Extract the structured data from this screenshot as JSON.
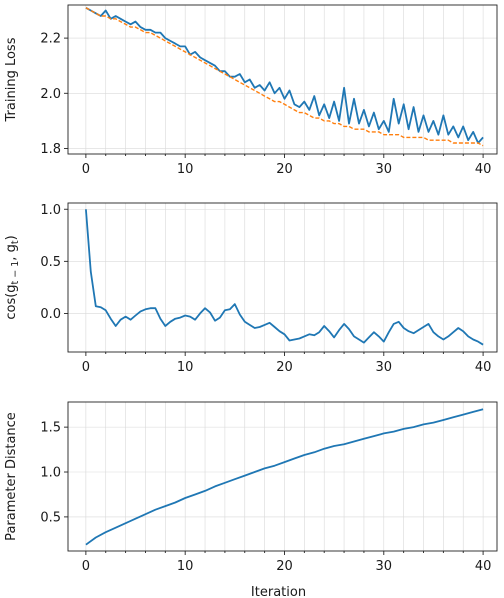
{
  "chart_data": [
    {
      "type": "line",
      "title": "",
      "xlabel": "",
      "ylabel": "Training Loss",
      "xlim": [
        -1.8,
        41.4
      ],
      "ylim": [
        1.78,
        2.32
      ],
      "xticks": [
        0,
        10,
        20,
        30,
        40
      ],
      "yticks": [
        1.8,
        2.0,
        2.2
      ],
      "ytick_labels": [
        "1.8",
        "2.0",
        "2.2"
      ],
      "grid": true,
      "x": [
        0,
        0.5,
        1,
        1.5,
        2,
        2.5,
        3,
        3.5,
        4,
        4.5,
        5,
        5.5,
        6,
        6.5,
        7,
        7.5,
        8,
        8.5,
        9,
        9.5,
        10,
        10.5,
        11,
        11.5,
        12,
        12.5,
        13,
        13.5,
        14,
        14.5,
        15,
        15.5,
        16,
        16.5,
        17,
        17.5,
        18,
        18.5,
        19,
        19.5,
        20,
        20.5,
        21,
        21.5,
        22,
        22.5,
        23,
        23.5,
        24,
        24.5,
        25,
        25.5,
        26,
        26.5,
        27,
        27.5,
        28,
        28.5,
        29,
        29.5,
        30,
        30.5,
        31,
        31.5,
        32,
        32.5,
        33,
        33.5,
        34,
        34.5,
        35,
        35.5,
        36,
        36.5,
        37,
        37.5,
        38,
        38.5,
        39,
        39.5,
        40
      ],
      "series": [
        {
          "color": "#1f77b4",
          "dash": "solid",
          "values": [
            2.31,
            2.3,
            2.29,
            2.28,
            2.3,
            2.27,
            2.28,
            2.27,
            2.26,
            2.25,
            2.26,
            2.24,
            2.23,
            2.23,
            2.22,
            2.22,
            2.2,
            2.19,
            2.18,
            2.17,
            2.17,
            2.14,
            2.15,
            2.13,
            2.12,
            2.11,
            2.1,
            2.08,
            2.08,
            2.06,
            2.06,
            2.07,
            2.04,
            2.05,
            2.02,
            2.03,
            2.01,
            2.04,
            2.0,
            2.02,
            1.98,
            2.01,
            1.96,
            1.95,
            1.97,
            1.94,
            1.99,
            1.92,
            1.96,
            1.91,
            1.97,
            1.9,
            2.02,
            1.89,
            1.98,
            1.89,
            1.94,
            1.88,
            1.93,
            1.87,
            1.9,
            1.86,
            1.98,
            1.89,
            1.96,
            1.87,
            1.95,
            1.86,
            1.92,
            1.86,
            1.9,
            1.85,
            1.92,
            1.85,
            1.88,
            1.84,
            1.88,
            1.83,
            1.86,
            1.82,
            1.84
          ]
        },
        {
          "color": "#ff7f0e",
          "dash": "dashed",
          "values": [
            2.31,
            2.3,
            2.29,
            2.28,
            2.28,
            2.27,
            2.27,
            2.26,
            2.25,
            2.24,
            2.24,
            2.23,
            2.22,
            2.22,
            2.21,
            2.2,
            2.19,
            2.18,
            2.17,
            2.16,
            2.15,
            2.14,
            2.13,
            2.12,
            2.11,
            2.1,
            2.09,
            2.08,
            2.07,
            2.06,
            2.05,
            2.04,
            2.03,
            2.02,
            2.01,
            2.0,
            1.99,
            1.98,
            1.97,
            1.97,
            1.96,
            1.95,
            1.94,
            1.93,
            1.93,
            1.92,
            1.91,
            1.91,
            1.9,
            1.9,
            1.89,
            1.89,
            1.88,
            1.88,
            1.87,
            1.87,
            1.87,
            1.86,
            1.86,
            1.86,
            1.85,
            1.85,
            1.85,
            1.85,
            1.84,
            1.84,
            1.84,
            1.84,
            1.84,
            1.83,
            1.83,
            1.83,
            1.83,
            1.83,
            1.82,
            1.82,
            1.82,
            1.82,
            1.82,
            1.82,
            1.81
          ]
        }
      ]
    },
    {
      "type": "line",
      "title": "",
      "xlabel": "",
      "ylabel": "cos(g",
      "ylabel_sub1": "t − 1",
      "ylabel_mid": ", g",
      "ylabel_sub2": "t",
      "ylabel_end": ")",
      "xlim": [
        -1.8,
        41.4
      ],
      "ylim": [
        -0.37,
        1.06
      ],
      "xticks": [
        0,
        10,
        20,
        30,
        40
      ],
      "yticks": [
        0.0,
        0.5,
        1.0
      ],
      "ytick_labels": [
        "0.0",
        "0.5",
        "1.0"
      ],
      "grid": true,
      "x": [
        0,
        0.5,
        1,
        1.5,
        2,
        2.5,
        3,
        3.5,
        4,
        4.5,
        5,
        5.5,
        6,
        6.5,
        7,
        7.5,
        8,
        8.5,
        9,
        9.5,
        10,
        10.5,
        11,
        11.5,
        12,
        12.5,
        13,
        13.5,
        14,
        14.5,
        15,
        15.5,
        16,
        16.5,
        17,
        17.5,
        18,
        18.5,
        19,
        19.5,
        20,
        20.5,
        21,
        21.5,
        22,
        22.5,
        23,
        23.5,
        24,
        24.5,
        25,
        25.5,
        26,
        26.5,
        27,
        27.5,
        28,
        28.5,
        29,
        29.5,
        30,
        30.5,
        31,
        31.5,
        32,
        32.5,
        33,
        33.5,
        34,
        34.5,
        35,
        35.5,
        36,
        36.5,
        37,
        37.5,
        38,
        38.5,
        39,
        39.5,
        40
      ],
      "series": [
        {
          "color": "#1f77b4",
          "dash": "solid",
          "values": [
            1.0,
            0.4,
            0.07,
            0.06,
            0.03,
            -0.05,
            -0.12,
            -0.06,
            -0.03,
            -0.06,
            -0.02,
            0.02,
            0.04,
            0.05,
            0.05,
            -0.05,
            -0.12,
            -0.08,
            -0.05,
            -0.04,
            -0.02,
            -0.03,
            -0.06,
            0.0,
            0.05,
            0.01,
            -0.07,
            -0.04,
            0.03,
            0.04,
            0.09,
            -0.01,
            -0.08,
            -0.11,
            -0.14,
            -0.13,
            -0.11,
            -0.09,
            -0.13,
            -0.17,
            -0.2,
            -0.26,
            -0.25,
            -0.24,
            -0.22,
            -0.2,
            -0.21,
            -0.18,
            -0.12,
            -0.17,
            -0.23,
            -0.16,
            -0.1,
            -0.15,
            -0.22,
            -0.25,
            -0.28,
            -0.23,
            -0.18,
            -0.22,
            -0.27,
            -0.18,
            -0.1,
            -0.08,
            -0.14,
            -0.17,
            -0.19,
            -0.16,
            -0.13,
            -0.1,
            -0.18,
            -0.22,
            -0.25,
            -0.22,
            -0.18,
            -0.14,
            -0.17,
            -0.22,
            -0.25,
            -0.27,
            -0.3
          ]
        }
      ]
    },
    {
      "type": "line",
      "title": "",
      "xlabel": "Iteration",
      "ylabel": "Parameter Distance",
      "xlim": [
        -1.8,
        41.4
      ],
      "ylim": [
        0.12,
        1.78
      ],
      "xticks": [
        0,
        10,
        20,
        30,
        40
      ],
      "yticks": [
        0.5,
        1.0,
        1.5
      ],
      "ytick_labels": [
        "0.5",
        "1.0",
        "1.5"
      ],
      "grid": true,
      "x": [
        0,
        1,
        2,
        3,
        4,
        5,
        6,
        7,
        8,
        9,
        10,
        11,
        12,
        13,
        14,
        15,
        16,
        17,
        18,
        19,
        20,
        21,
        22,
        23,
        24,
        25,
        26,
        27,
        28,
        29,
        30,
        31,
        32,
        33,
        34,
        35,
        36,
        37,
        38,
        39,
        40
      ],
      "series": [
        {
          "color": "#1f77b4",
          "dash": "solid",
          "values": [
            0.19,
            0.27,
            0.33,
            0.38,
            0.43,
            0.48,
            0.53,
            0.58,
            0.62,
            0.66,
            0.71,
            0.75,
            0.79,
            0.84,
            0.88,
            0.92,
            0.96,
            1.0,
            1.04,
            1.07,
            1.11,
            1.15,
            1.19,
            1.22,
            1.26,
            1.29,
            1.31,
            1.34,
            1.37,
            1.4,
            1.43,
            1.45,
            1.48,
            1.5,
            1.53,
            1.55,
            1.58,
            1.61,
            1.64,
            1.67,
            1.7
          ]
        }
      ]
    }
  ]
}
